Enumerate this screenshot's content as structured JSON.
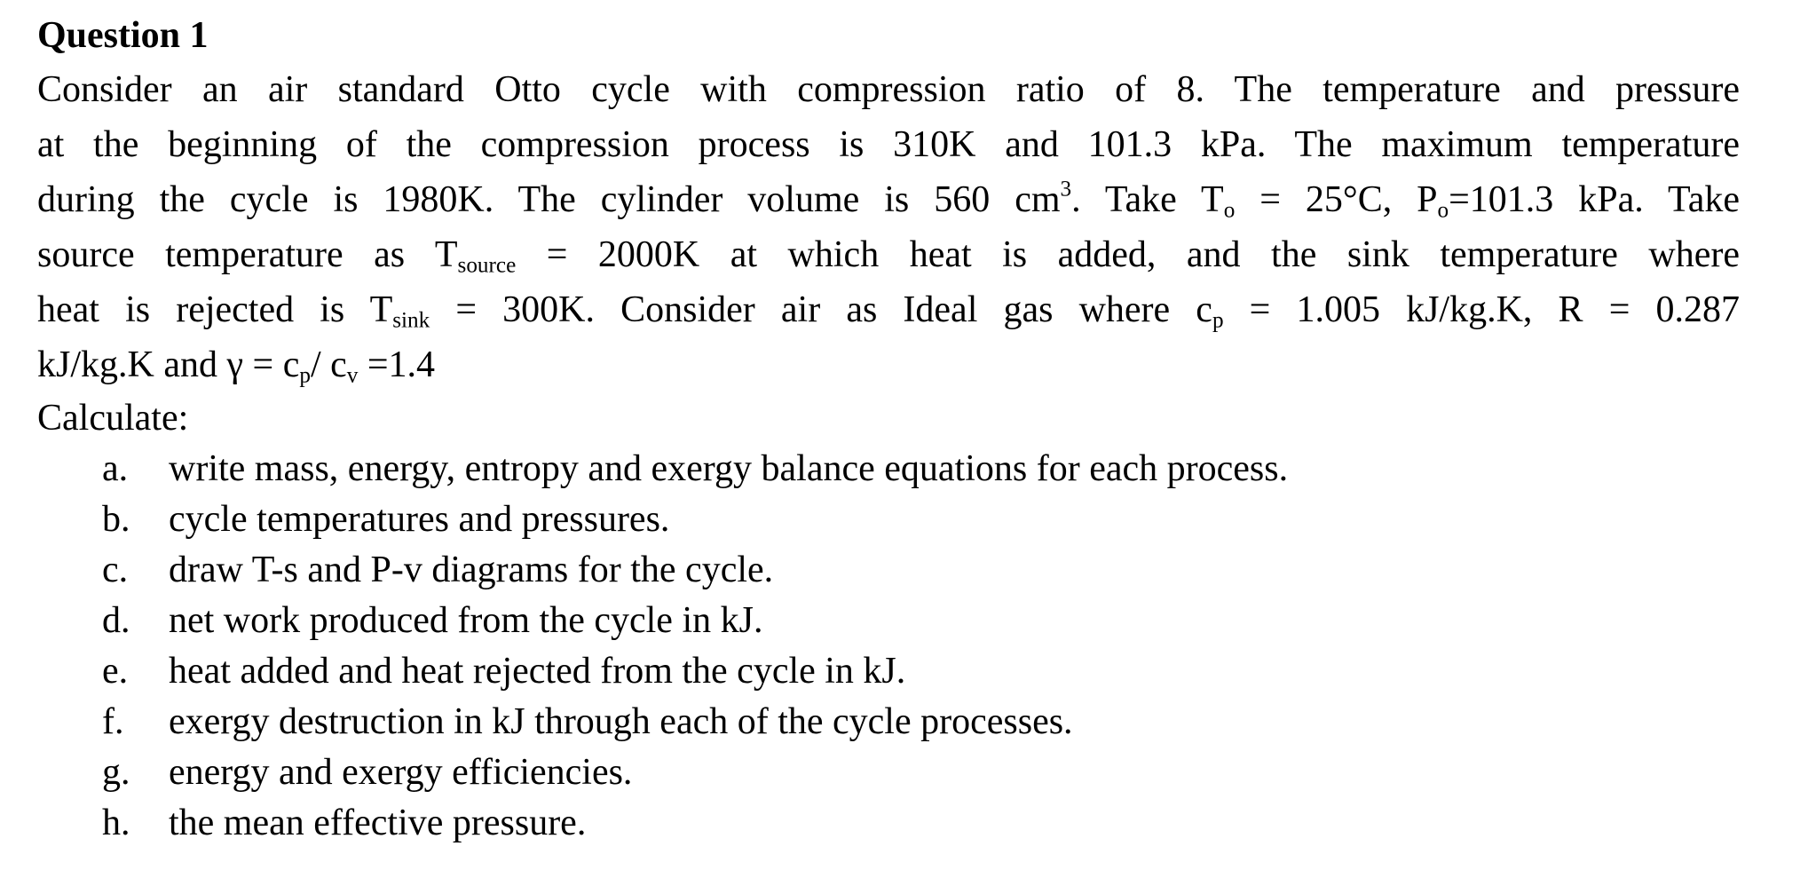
{
  "title": "Question 1",
  "paragraph_lines": [
    [
      {
        "t": "Consider an air standard Otto cycle with compression ratio of 8. The temperature and pressure"
      }
    ],
    [
      {
        "t": "at the  beginning of the compression process is 310K and 101.3 kPa. The maximum temperature"
      }
    ],
    [
      {
        "t": "during  the cycle is 1980K. The cylinder volume is 560 cm"
      },
      {
        "t": "3",
        "sup": true
      },
      {
        "t": ". Take T"
      },
      {
        "t": "o",
        "sub": true
      },
      {
        "t": " = 25°C, P"
      },
      {
        "t": "o",
        "sub": true
      },
      {
        "t": "=101.3 kPa. Take"
      }
    ],
    [
      {
        "t": "source  temperature  as  T"
      },
      {
        "t": "source",
        "sub": true
      },
      {
        "t": " = 2000K at which heat is added, and the sink temperature where"
      }
    ],
    [
      {
        "t": "heat is  rejected is T"
      },
      {
        "t": "sink",
        "sub": true
      },
      {
        "t": " = 300K. Consider air as Ideal gas where c"
      },
      {
        "t": "p",
        "sub": true
      },
      {
        "t": " = 1.005 kJ/kg.K, R = 0.287"
      }
    ],
    [
      {
        "t": "kJ/kg.K  and γ = c"
      },
      {
        "t": "p",
        "sub": true
      },
      {
        "t": "/ c"
      },
      {
        "t": "v",
        "sub": true
      },
      {
        "t": " =1.4"
      }
    ]
  ],
  "calculate_label": "Calculate:",
  "items": [
    {
      "label": "a.",
      "text": "write mass, energy, entropy and exergy balance equations for each process."
    },
    {
      "label": "b.",
      "text": "cycle temperatures and pressures."
    },
    {
      "label": "c.",
      "text": "draw T-s and P-v diagrams for the cycle."
    },
    {
      "label": "d.",
      "text": "net work produced from the cycle in kJ."
    },
    {
      "label": "e.",
      "text": "heat added and heat rejected from the cycle in kJ."
    },
    {
      "label": "f.",
      "text": "exergy destruction in kJ through each of the cycle processes."
    },
    {
      "label": "g.",
      "text": "energy and exergy efficiencies."
    },
    {
      "label": "h.",
      "text": "the mean effective pressure."
    }
  ]
}
